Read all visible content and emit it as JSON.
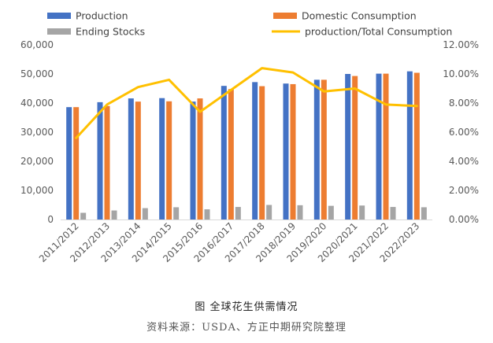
{
  "chart_data": {
    "type": "bar",
    "categories": [
      "2011/2012",
      "2012/2013",
      "2013/2014",
      "2014/2015",
      "2015/2016",
      "2016/2017",
      "2017/2018",
      "2018/2019",
      "2019/2020",
      "2020/2021",
      "2021/2022",
      "2022/2023"
    ],
    "series": [
      {
        "name": "Production",
        "type": "bar",
        "axis": "left",
        "color": "#4472c4",
        "values": [
          38600,
          40300,
          41600,
          41700,
          40500,
          45900,
          47200,
          46700,
          48000,
          50000,
          50100,
          50900
        ]
      },
      {
        "name": "Domestic Consumption",
        "type": "bar",
        "axis": "left",
        "color": "#ed7d31",
        "values": [
          38600,
          39000,
          40500,
          40600,
          41600,
          44800,
          45800,
          46500,
          48000,
          49300,
          50100,
          50400
        ]
      },
      {
        "name": "Ending Stocks",
        "type": "bar",
        "axis": "left",
        "color": "#a5a5a5",
        "values": [
          2300,
          3100,
          3900,
          4200,
          3500,
          4300,
          5000,
          4900,
          4700,
          4800,
          4300,
          4200
        ]
      },
      {
        "name": "production/Total Consumption",
        "type": "line",
        "axis": "right",
        "color": "#ffc000",
        "values": [
          5.6,
          7.9,
          9.1,
          9.6,
          7.4,
          8.9,
          10.4,
          10.1,
          8.8,
          9.0,
          7.9,
          7.8
        ]
      }
    ],
    "y_left": {
      "min": 0,
      "max": 60000,
      "ticks": [
        "0",
        "10,000",
        "20,000",
        "30,000",
        "40,000",
        "50,000",
        "60,000"
      ]
    },
    "y_right": {
      "min": 0,
      "max": 12,
      "ticks": [
        "0.00%",
        "2.00%",
        "4.00%",
        "6.00%",
        "8.00%",
        "10.00%",
        "12.00%"
      ]
    },
    "grid": false,
    "legend_position": "top"
  },
  "caption": "图  全球花生供需情况",
  "source": "资料来源：USDA、方正中期研究院整理"
}
